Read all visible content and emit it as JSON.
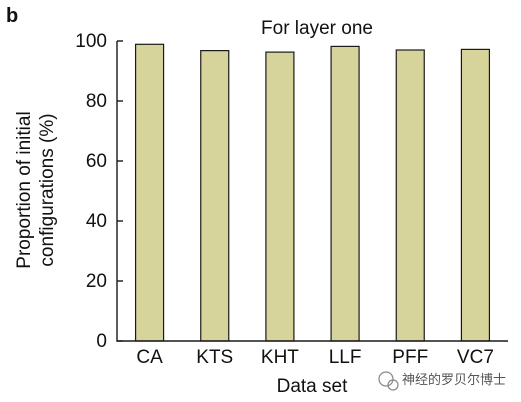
{
  "panel_label": "b",
  "watermark": {
    "text": "神经的罗贝尔博士",
    "icon": "wechat-icon"
  },
  "chart_data": {
    "type": "bar",
    "title": "For layer one",
    "xlabel": "Data set",
    "ylabel_line1": "Proportion of initial",
    "ylabel_line2": "configurations (%)",
    "categories": [
      "CA",
      "KTS",
      "KHT",
      "LLF",
      "PFF",
      "VC7"
    ],
    "values": [
      98.9,
      96.8,
      96.3,
      98.2,
      97.0,
      97.2
    ],
    "ylim": [
      0,
      100
    ],
    "yticks": [
      0,
      20,
      40,
      60,
      80,
      100
    ],
    "grid": false,
    "bar_color": "#d6d49b"
  }
}
